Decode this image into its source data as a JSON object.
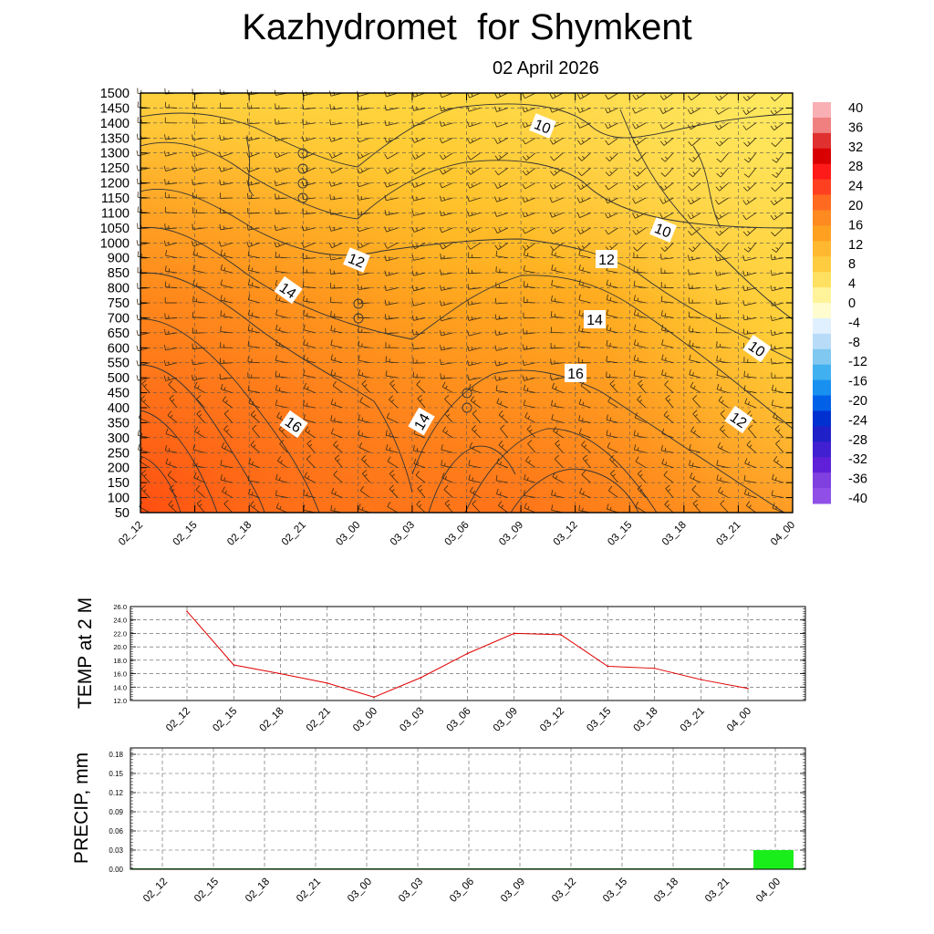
{
  "title": "Kazhydromet  for Shymkent",
  "subtitle": "02 April 2026",
  "colors": {
    "warm_light": "#ffe04a",
    "warm_mid": "#ffb21c",
    "warm_dark": "#ff5a14",
    "temp_line": "#e00000",
    "precip_bar": "#1aee1a",
    "frame": "#000000"
  },
  "chart_data": [
    {
      "type": "heatmap",
      "name_text": "",
      "x_ticks": [
        "02_12",
        "02_15",
        "02_18",
        "02_21",
        "03_00",
        "03_03",
        "03_06",
        "03_09",
        "03_12",
        "03_15",
        "03_18",
        "03_21",
        "04_00"
      ],
      "y_ticks": [
        "50",
        "100",
        "150",
        "200",
        "250",
        "300",
        "350",
        "400",
        "450",
        "500",
        "550",
        "600",
        "650",
        "700",
        "750",
        "800",
        "850",
        "900",
        "1000",
        "1050",
        "1100",
        "1150",
        "1200",
        "1250",
        "1300",
        "1350",
        "1400",
        "1450",
        "1500"
      ],
      "contour_labels": [
        "10",
        "10",
        "10",
        "12",
        "12",
        "12",
        "14",
        "14",
        "14",
        "16",
        "16"
      ],
      "colorbar": {
        "labels": [
          "40",
          "36",
          "32",
          "28",
          "24",
          "20",
          "16",
          "12",
          "8",
          "4",
          "0",
          "-4",
          "-8",
          "-12",
          "-16",
          "-20",
          "-24",
          "-28",
          "-32",
          "-36",
          "-40"
        ],
        "colors": [
          "#f8b0b4",
          "#f08080",
          "#e03030",
          "#d80000",
          "#ff1a1a",
          "#ff4020",
          "#ff6a20",
          "#ff8a20",
          "#ffa020",
          "#ffb830",
          "#ffcc40",
          "#ffe060",
          "#fff39a",
          "#fffcd0",
          "#e0f0ff",
          "#b8dcf8",
          "#80c8f0",
          "#40b0f0",
          "#1890f0",
          "#0060e8",
          "#0030d0",
          "#2020c8",
          "#4020d0",
          "#6020d8",
          "#8040e0",
          "#9050e8"
        ]
      }
    },
    {
      "type": "line",
      "ylabel": "TEMP at 2 M",
      "categories": [
        "02_12",
        "02_15",
        "02_18",
        "02_21",
        "03_00",
        "03_03",
        "03_06",
        "03_09",
        "03_12",
        "03_15",
        "03_18",
        "03_21",
        "04_00"
      ],
      "y_tick_labels": [
        "26.0",
        "24.0",
        "22.0",
        "20.0",
        "18.0",
        "16.0",
        "14.0",
        "12.0"
      ],
      "ylim": [
        12,
        26
      ],
      "values": [
        25.3,
        17.3,
        16.0,
        14.6,
        12.5,
        15.4,
        19.0,
        22.0,
        21.8,
        17.1,
        16.8,
        15.1,
        13.8
      ]
    },
    {
      "type": "bar",
      "ylabel": "PRECIP, mm",
      "categories": [
        "02_12",
        "02_15",
        "02_18",
        "02_21",
        "03_00",
        "03_03",
        "03_06",
        "03_09",
        "03_12",
        "03_15",
        "03_18",
        "03_21",
        "04_00"
      ],
      "y_tick_labels": [
        "0.18",
        "0.15",
        "0.12",
        "0.09",
        "0.06",
        "0.03",
        "0.00"
      ],
      "ylim": [
        0,
        0.19
      ],
      "values": [
        0,
        0,
        0,
        0,
        0,
        0,
        0,
        0,
        0,
        0,
        0,
        0,
        0.03
      ]
    }
  ]
}
